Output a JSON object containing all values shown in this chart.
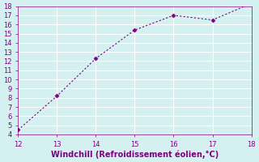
{
  "x": [
    12,
    13,
    14,
    15,
    16,
    17,
    18
  ],
  "y": [
    4.5,
    8.2,
    12.3,
    15.4,
    17.0,
    16.5,
    18.3
  ],
  "xlabel": "Windchill (Refroidissement éolien,°C)",
  "xlim": [
    12,
    18
  ],
  "ylim": [
    4,
    18
  ],
  "yticks": [
    4,
    5,
    6,
    7,
    8,
    9,
    10,
    11,
    12,
    13,
    14,
    15,
    16,
    17,
    18
  ],
  "xticks": [
    12,
    13,
    14,
    15,
    16,
    17,
    18
  ],
  "line_color": "#800080",
  "marker_color": "#800080",
  "bg_color": "#d4f0f0",
  "grid_color": "#ffffff",
  "tick_color": "#800080",
  "label_color": "#800080",
  "font_size_axis": 7,
  "font_size_ticks": 6
}
